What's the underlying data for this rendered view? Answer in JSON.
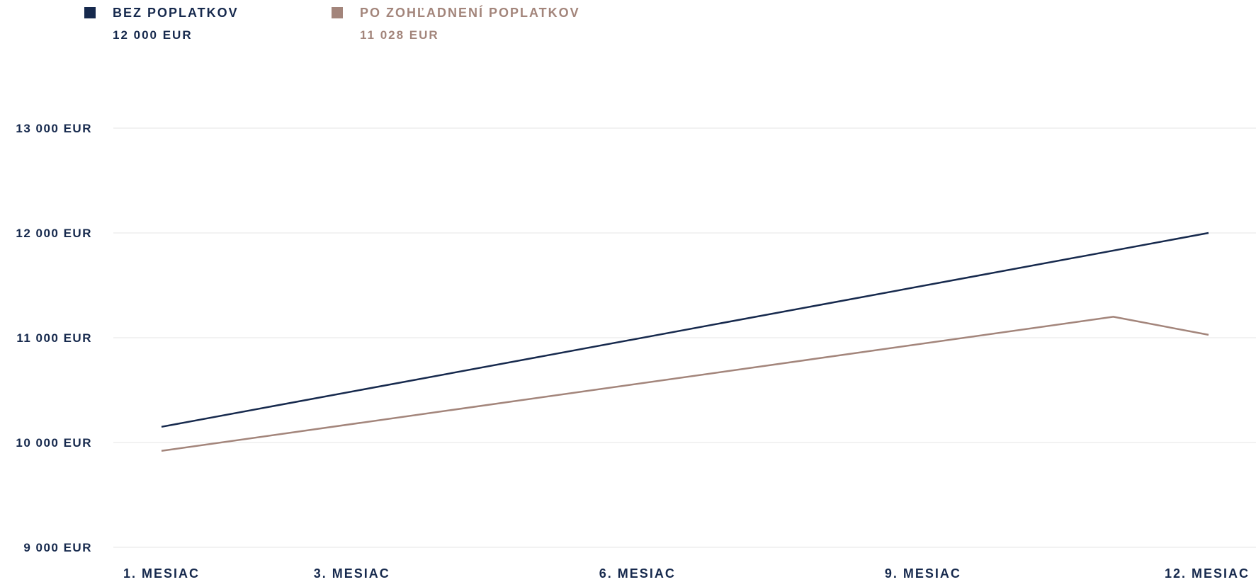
{
  "legend": [
    {
      "name": "BEZ POPLATKOV",
      "total": "12 000 EUR",
      "color": "#16294d"
    },
    {
      "name": "PO ZOHĽADNENÍ POPLATKOV",
      "total": "11 028 EUR",
      "color": "#a3857b"
    }
  ],
  "chart_data": {
    "type": "line",
    "title": "",
    "xlabel": "",
    "ylabel": "",
    "ylim": [
      9000,
      13000
    ],
    "grid": true,
    "legend_position": "top-left",
    "y_ticks": [
      {
        "value": 13000,
        "label": "13 000 EUR"
      },
      {
        "value": 12000,
        "label": "12 000 EUR"
      },
      {
        "value": 11000,
        "label": "11 000 EUR"
      },
      {
        "value": 10000,
        "label": "10 000 EUR"
      },
      {
        "value": 9000,
        "label": "9 000 EUR"
      }
    ],
    "x_ticks": [
      {
        "value": 1,
        "label": "1. MESIAC"
      },
      {
        "value": 3,
        "label": "3. MESIAC"
      },
      {
        "value": 6,
        "label": "6. MESIAC"
      },
      {
        "value": 9,
        "label": "9. MESIAC"
      },
      {
        "value": 12,
        "label": "12. MESIAC"
      }
    ],
    "series": [
      {
        "name": "BEZ POPLATKOV",
        "color": "#16294d",
        "points": [
          [
            1,
            10150
          ],
          [
            12,
            12000
          ]
        ]
      },
      {
        "name": "PO ZOHĽADNENÍ POPLATKOV",
        "color": "#a3857b",
        "points": [
          [
            1,
            9920
          ],
          [
            11,
            11200
          ],
          [
            12,
            11028
          ]
        ]
      }
    ]
  }
}
